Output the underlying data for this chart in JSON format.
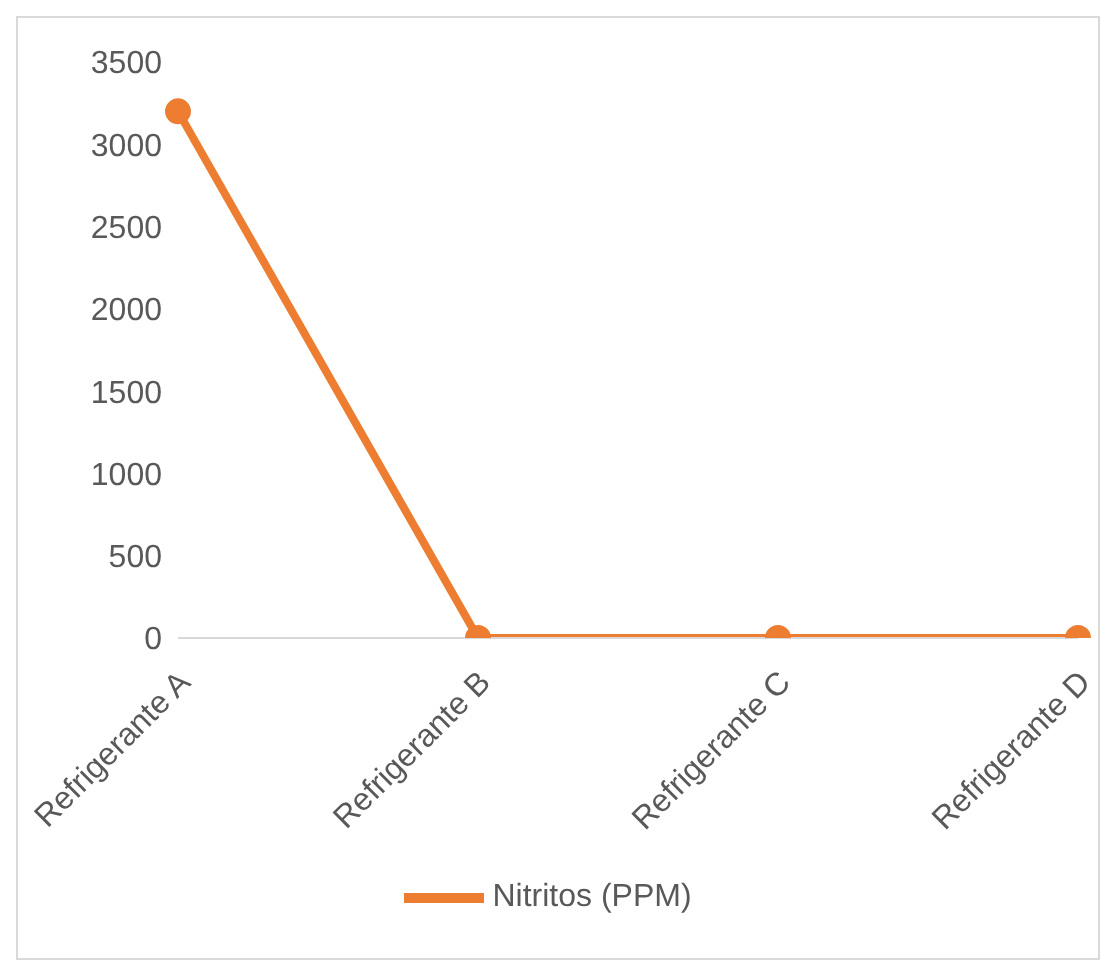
{
  "chart_data": {
    "type": "line",
    "categories": [
      "Refrigerante A",
      "Refrigerante B",
      "Refrigerante C",
      "Refrigerante D"
    ],
    "series": [
      {
        "name": "Nitritos (PPM)",
        "color": "#ed7d31",
        "values": [
          3200,
          0,
          0,
          0
        ]
      }
    ],
    "ylim": [
      0,
      3500
    ],
    "yticks": [
      0,
      500,
      1000,
      1500,
      2000,
      2500,
      3000,
      3500
    ],
    "grid": false,
    "legend": "bottom",
    "marker": "circle",
    "line_style": "solid"
  }
}
